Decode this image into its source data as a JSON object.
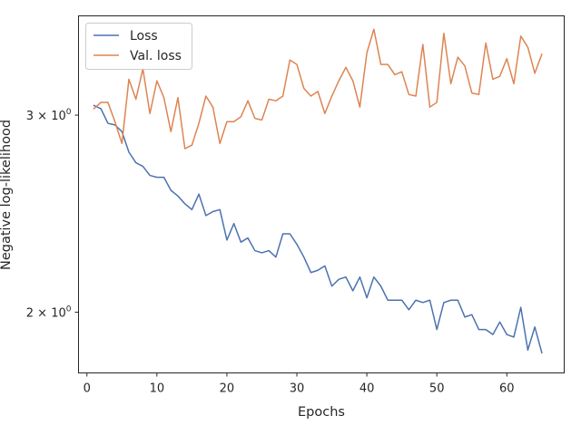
{
  "chart_data": {
    "type": "line",
    "xlabel": "Epochs",
    "ylabel": "Negative log-likelihood",
    "yscale": "log",
    "xlim": [
      -1.2,
      68.2
    ],
    "ylim": [
      1.765,
      3.68
    ],
    "xticks": [
      0,
      10,
      20,
      30,
      40,
      50,
      60
    ],
    "xtick_labels": [
      "0",
      "10",
      "20",
      "30",
      "40",
      "50",
      "60"
    ],
    "yticks": [
      2,
      3
    ],
    "ytick_labels": [
      "2 × 10⁰",
      "3 × 10⁰"
    ],
    "grid": false,
    "legend_position": "top-left",
    "x": [
      1,
      2,
      3,
      4,
      5,
      6,
      7,
      8,
      9,
      10,
      11,
      12,
      13,
      14,
      15,
      16,
      17,
      18,
      19,
      20,
      21,
      22,
      23,
      24,
      25,
      26,
      27,
      28,
      29,
      30,
      31,
      32,
      33,
      34,
      35,
      36,
      37,
      38,
      39,
      40,
      41,
      42,
      43,
      44,
      45,
      46,
      47,
      48,
      49,
      50,
      51,
      52,
      53,
      54,
      55,
      56,
      57,
      58,
      59,
      60,
      61,
      62,
      63,
      64,
      65
    ],
    "series": [
      {
        "name": "Loss",
        "color": "#4c72b0",
        "values": [
          3.06,
          3.04,
          2.95,
          2.94,
          2.9,
          2.78,
          2.72,
          2.7,
          2.65,
          2.64,
          2.64,
          2.57,
          2.54,
          2.5,
          2.47,
          2.55,
          2.44,
          2.46,
          2.47,
          2.32,
          2.4,
          2.31,
          2.33,
          2.27,
          2.26,
          2.27,
          2.24,
          2.35,
          2.35,
          2.3,
          2.24,
          2.17,
          2.18,
          2.2,
          2.11,
          2.14,
          2.15,
          2.09,
          2.15,
          2.06,
          2.15,
          2.11,
          2.05,
          2.05,
          2.05,
          2.01,
          2.05,
          2.04,
          2.05,
          1.93,
          2.04,
          2.05,
          2.05,
          1.98,
          1.99,
          1.93,
          1.93,
          1.91,
          1.96,
          1.91,
          1.9,
          2.02,
          1.85,
          1.94,
          1.84
        ]
      },
      {
        "name": "Val. loss",
        "color": "#dd8452",
        "values": [
          3.04,
          3.08,
          3.08,
          2.96,
          2.83,
          3.23,
          3.1,
          3.3,
          3.01,
          3.22,
          3.11,
          2.9,
          3.11,
          2.8,
          2.82,
          2.95,
          3.12,
          3.05,
          2.83,
          2.96,
          2.96,
          2.99,
          3.09,
          2.98,
          2.97,
          3.1,
          3.09,
          3.12,
          3.36,
          3.33,
          3.17,
          3.12,
          3.15,
          3.01,
          3.12,
          3.22,
          3.31,
          3.22,
          3.05,
          3.41,
          3.58,
          3.33,
          3.33,
          3.26,
          3.28,
          3.13,
          3.12,
          3.47,
          3.05,
          3.08,
          3.55,
          3.2,
          3.38,
          3.32,
          3.14,
          3.13,
          3.48,
          3.23,
          3.25,
          3.37,
          3.2,
          3.53,
          3.45,
          3.27,
          3.4
        ]
      }
    ]
  }
}
